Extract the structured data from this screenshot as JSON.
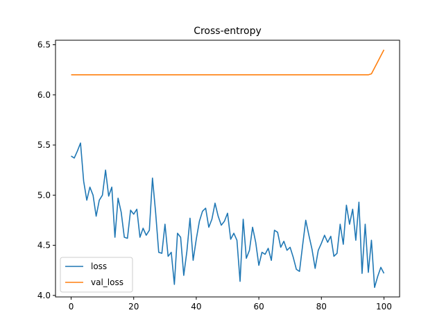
{
  "chart_data": {
    "type": "line",
    "title": "Cross-entropy",
    "xlabel": "",
    "ylabel": "",
    "xlim": [
      -5,
      105
    ],
    "ylim": [
      3.985,
      6.545
    ],
    "x_ticks": [
      0,
      20,
      40,
      60,
      80,
      100
    ],
    "y_ticks": [
      4.0,
      4.5,
      5.0,
      5.5,
      6.0,
      6.5
    ],
    "x_tick_labels": [
      "0",
      "20",
      "40",
      "60",
      "80",
      "100"
    ],
    "y_tick_labels": [
      "4.0",
      "4.5",
      "5.0",
      "5.5",
      "6.0",
      "6.5"
    ],
    "grid": false,
    "legend_position": "lower-left",
    "series": [
      {
        "name": "loss",
        "color": "#1f77b4",
        "x": [
          0,
          1,
          2,
          3,
          4,
          5,
          6,
          7,
          8,
          9,
          10,
          11,
          12,
          13,
          14,
          15,
          16,
          17,
          18,
          19,
          20,
          21,
          22,
          23,
          24,
          25,
          26,
          27,
          28,
          29,
          30,
          31,
          32,
          33,
          34,
          35,
          36,
          37,
          38,
          39,
          40,
          41,
          42,
          43,
          44,
          45,
          46,
          47,
          48,
          49,
          50,
          51,
          52,
          53,
          54,
          55,
          56,
          57,
          58,
          59,
          60,
          61,
          62,
          63,
          64,
          65,
          66,
          67,
          68,
          69,
          70,
          71,
          72,
          73,
          74,
          75,
          76,
          77,
          78,
          79,
          80,
          81,
          82,
          83,
          84,
          85,
          86,
          87,
          88,
          89,
          90,
          91,
          92,
          93,
          94,
          95,
          96,
          97,
          98,
          99,
          100
        ],
        "values": [
          5.39,
          5.37,
          5.44,
          5.52,
          5.14,
          4.95,
          5.08,
          5.0,
          4.79,
          4.95,
          5.0,
          5.25,
          4.99,
          5.08,
          4.58,
          4.97,
          4.83,
          4.58,
          4.57,
          4.85,
          4.81,
          4.86,
          4.58,
          4.67,
          4.6,
          4.65,
          5.17,
          4.83,
          4.43,
          4.42,
          4.71,
          4.39,
          4.43,
          4.11,
          4.62,
          4.58,
          4.2,
          4.44,
          4.77,
          4.35,
          4.56,
          4.74,
          4.84,
          4.87,
          4.68,
          4.76,
          4.92,
          4.79,
          4.7,
          4.74,
          4.82,
          4.56,
          4.62,
          4.55,
          4.14,
          4.76,
          4.37,
          4.45,
          4.68,
          4.53,
          4.3,
          4.43,
          4.41,
          4.47,
          4.35,
          4.65,
          4.63,
          4.48,
          4.54,
          4.45,
          4.48,
          4.38,
          4.26,
          4.24,
          4.5,
          4.75,
          4.6,
          4.46,
          4.27,
          4.45,
          4.52,
          4.6,
          4.53,
          4.59,
          4.39,
          4.42,
          4.71,
          4.51,
          4.9,
          4.71,
          4.86,
          4.55,
          4.93,
          4.22,
          4.71,
          4.23,
          4.55,
          4.08,
          4.19,
          4.28,
          4.22
        ]
      },
      {
        "name": "val_loss",
        "color": "#ff7f0e",
        "x": [
          0,
          1,
          2,
          3,
          4,
          5,
          6,
          7,
          8,
          9,
          10,
          11,
          12,
          13,
          14,
          15,
          16,
          17,
          18,
          19,
          20,
          21,
          22,
          23,
          24,
          25,
          26,
          27,
          28,
          29,
          30,
          31,
          32,
          33,
          34,
          35,
          36,
          37,
          38,
          39,
          40,
          41,
          42,
          43,
          44,
          45,
          46,
          47,
          48,
          49,
          50,
          51,
          52,
          53,
          54,
          55,
          56,
          57,
          58,
          59,
          60,
          61,
          62,
          63,
          64,
          65,
          66,
          67,
          68,
          69,
          70,
          71,
          72,
          73,
          74,
          75,
          76,
          77,
          78,
          79,
          80,
          81,
          82,
          83,
          84,
          85,
          86,
          87,
          88,
          89,
          90,
          91,
          92,
          93,
          94,
          95,
          96,
          97,
          98,
          99,
          100
        ],
        "values": [
          6.2,
          6.2,
          6.2,
          6.2,
          6.2,
          6.2,
          6.2,
          6.2,
          6.2,
          6.2,
          6.2,
          6.2,
          6.2,
          6.2,
          6.2,
          6.2,
          6.2,
          6.2,
          6.2,
          6.2,
          6.2,
          6.2,
          6.2,
          6.2,
          6.2,
          6.2,
          6.2,
          6.2,
          6.2,
          6.2,
          6.2,
          6.2,
          6.2,
          6.2,
          6.2,
          6.2,
          6.2,
          6.2,
          6.2,
          6.2,
          6.2,
          6.2,
          6.2,
          6.2,
          6.2,
          6.2,
          6.2,
          6.2,
          6.2,
          6.2,
          6.2,
          6.2,
          6.2,
          6.2,
          6.2,
          6.2,
          6.2,
          6.2,
          6.2,
          6.2,
          6.2,
          6.2,
          6.2,
          6.2,
          6.2,
          6.2,
          6.2,
          6.2,
          6.2,
          6.2,
          6.2,
          6.2,
          6.2,
          6.2,
          6.2,
          6.2,
          6.2,
          6.2,
          6.2,
          6.2,
          6.2,
          6.2,
          6.2,
          6.2,
          6.2,
          6.2,
          6.2,
          6.2,
          6.2,
          6.2,
          6.2,
          6.2,
          6.2,
          6.2,
          6.2,
          6.2,
          6.21,
          6.27,
          6.33,
          6.39,
          6.45
        ]
      }
    ]
  }
}
